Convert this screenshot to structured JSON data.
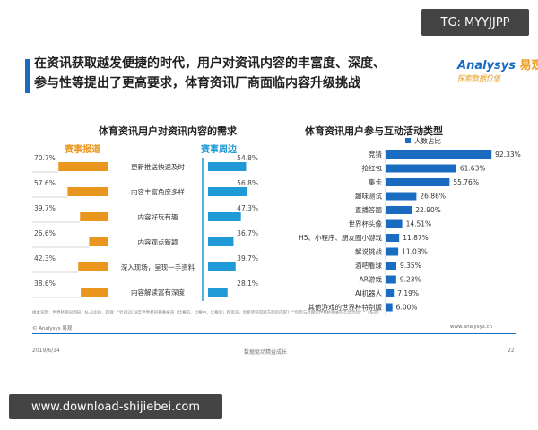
{
  "watermark_top": "TG: MYYJJPP",
  "watermark_bottom": "www.download-shijiebei.com",
  "headline": {
    "line1": "在资讯获取越发便捷的时代，用户对资讯内容的丰富度、深度、",
    "line2": "参与性等提出了更高要求，体育资讯厂商面临内容升级挑战"
  },
  "brand": {
    "name": "nalysys",
    "name_cn": "易观",
    "tagline": "探索数据价值"
  },
  "footnote": "样本说明：世界杯期间调研，N=1000，题目：\"针对2018年世界杯的赛事报道（比赛前、比赛中、比赛后）和资讯，您希望获得哪方面的内容？\"\"您参与过哪些世界杯相关的互动活动？\"（多选）",
  "source": "© Analysys 易观",
  "source_url": "www.analysys.cn",
  "footer": {
    "date": "2019/6/14",
    "center": "数据驱动精益成长",
    "page": "22"
  },
  "colors": {
    "orange": "#e8961e",
    "blue": "#1f9ad6",
    "navy": "#1a6cc0",
    "gray_line": "#aaaaaa"
  },
  "chart_data": [
    {
      "type": "bar",
      "title": "体育资讯用户对资讯内容的需求",
      "categories": [
        "更新推送快速及时",
        "内容丰富角度多样",
        "内容好玩有趣",
        "内容观点新颖",
        "深入现场，呈现一手资料",
        "内容解读富有深度"
      ],
      "series": [
        {
          "name": "赛事报道",
          "values": [
            70.7,
            57.6,
            39.7,
            26.6,
            42.3,
            38.6
          ],
          "labels": [
            "70.7%",
            "57.6%",
            "39.7%",
            "26.6%",
            "42.3%",
            "38.6%"
          ]
        },
        {
          "name": "赛事周边",
          "values": [
            54.8,
            56.8,
            47.3,
            36.7,
            39.7,
            28.1
          ],
          "labels": [
            "54.8%",
            "56.8%",
            "47.3%",
            "36.7%",
            "39.7%",
            "28.1%"
          ]
        }
      ]
    },
    {
      "type": "bar",
      "title": "体育资讯用户参与互动活动类型",
      "legend": "人数占比",
      "categories": [
        "竞猜",
        "抢红包",
        "集卡",
        "趣味测试",
        "直播答题",
        "世界杯头像",
        "H5、小程序、朋友圈小游戏",
        "解说挑战",
        "酒吧看球",
        "AR游戏",
        "AI机器人",
        "其他游戏的世界杯特别版"
      ],
      "values": [
        92.33,
        61.63,
        55.76,
        26.86,
        22.9,
        14.51,
        11.87,
        11.03,
        9.35,
        9.23,
        7.19,
        6.0
      ],
      "labels": [
        "92.33%",
        "61.63%",
        "55.76%",
        "26.86%",
        "22.90%",
        "14.51%",
        "11.87%",
        "11.03%",
        "9.35%",
        "9.23%",
        "7.19%",
        "6.00%"
      ]
    }
  ]
}
